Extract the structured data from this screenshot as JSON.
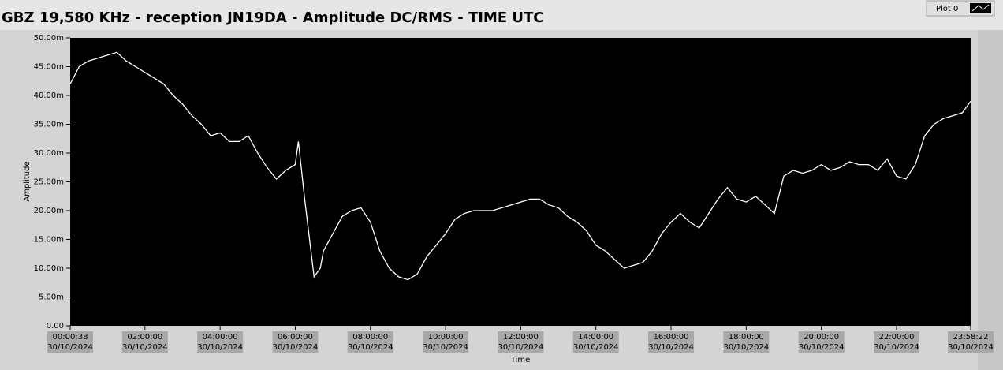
{
  "chart_data": {
    "type": "line",
    "title": "GBZ  19,580 KHz - reception JN19DA -  Amplitude DC/RMS   - TIME UTC",
    "legend": "Plot 0",
    "xlabel": "Time",
    "ylabel": "Amplitude",
    "x_date": "30/10/2024",
    "xlim": [
      "00:00:38",
      "23:58:22"
    ],
    "xticks": [
      "00:00:38",
      "02:00:00",
      "04:00:00",
      "06:00:00",
      "08:00:00",
      "10:00:00",
      "12:00:00",
      "14:00:00",
      "16:00:00",
      "18:00:00",
      "20:00:00",
      "22:00:00",
      "23:58:22"
    ],
    "ylim": [
      0,
      0.05
    ],
    "yticks": [
      {
        "value": 0,
        "label": "0.00"
      },
      {
        "value": 0.005,
        "label": "5.00m"
      },
      {
        "value": 0.01,
        "label": "10.00m"
      },
      {
        "value": 0.015,
        "label": "15.00m"
      },
      {
        "value": 0.02,
        "label": "20.00m"
      },
      {
        "value": 0.025,
        "label": "25.00m"
      },
      {
        "value": 0.03,
        "label": "30.00m"
      },
      {
        "value": 0.035,
        "label": "35.00m"
      },
      {
        "value": 0.04,
        "label": "40.00m"
      },
      {
        "value": 0.045,
        "label": "45.00m"
      },
      {
        "value": 0.05,
        "label": "50.00m"
      }
    ],
    "series": [
      {
        "name": "Plot 0",
        "color": "#ffffff",
        "x": [
          "00:00:38",
          "00:15:00",
          "00:30:00",
          "00:45:00",
          "01:00:00",
          "01:15:00",
          "01:30:00",
          "01:45:00",
          "02:00:00",
          "02:15:00",
          "02:30:00",
          "02:45:00",
          "03:00:00",
          "03:15:00",
          "03:30:00",
          "03:45:00",
          "04:00:00",
          "04:15:00",
          "04:30:00",
          "04:45:00",
          "05:00:00",
          "05:15:00",
          "05:30:00",
          "05:45:00",
          "06:00:00",
          "06:05:00",
          "06:15:00",
          "06:30:00",
          "06:40:00",
          "06:45:00",
          "07:00:00",
          "07:15:00",
          "07:30:00",
          "07:45:00",
          "08:00:00",
          "08:15:00",
          "08:30:00",
          "08:45:00",
          "09:00:00",
          "09:15:00",
          "09:30:00",
          "09:45:00",
          "10:00:00",
          "10:15:00",
          "10:30:00",
          "10:45:00",
          "11:00:00",
          "11:15:00",
          "11:30:00",
          "11:45:00",
          "12:00:00",
          "12:15:00",
          "12:30:00",
          "12:45:00",
          "13:00:00",
          "13:15:00",
          "13:30:00",
          "13:45:00",
          "14:00:00",
          "14:15:00",
          "14:30:00",
          "14:45:00",
          "15:00:00",
          "15:15:00",
          "15:30:00",
          "15:45:00",
          "16:00:00",
          "16:15:00",
          "16:30:00",
          "16:45:00",
          "17:00:00",
          "17:15:00",
          "17:30:00",
          "17:45:00",
          "18:00:00",
          "18:15:00",
          "18:30:00",
          "18:45:00",
          "19:00:00",
          "19:15:00",
          "19:30:00",
          "19:45:00",
          "20:00:00",
          "20:15:00",
          "20:30:00",
          "20:45:00",
          "21:00:00",
          "21:15:00",
          "21:30:00",
          "21:45:00",
          "22:00:00",
          "22:15:00",
          "22:30:00",
          "22:45:00",
          "23:00:00",
          "23:15:00",
          "23:30:00",
          "23:45:00",
          "23:58:22"
        ],
        "values": [
          0.042,
          0.045,
          0.046,
          0.0465,
          0.047,
          0.0475,
          0.046,
          0.045,
          0.044,
          0.043,
          0.042,
          0.04,
          0.0385,
          0.0365,
          0.035,
          0.033,
          0.0335,
          0.032,
          0.032,
          0.033,
          0.03,
          0.0275,
          0.0255,
          0.027,
          0.028,
          0.032,
          0.022,
          0.0085,
          0.01,
          0.013,
          0.016,
          0.019,
          0.02,
          0.0205,
          0.018,
          0.013,
          0.01,
          0.0085,
          0.008,
          0.009,
          0.012,
          0.014,
          0.016,
          0.0185,
          0.0195,
          0.02,
          0.02,
          0.02,
          0.0205,
          0.021,
          0.0215,
          0.022,
          0.022,
          0.021,
          0.0205,
          0.019,
          0.018,
          0.0165,
          0.014,
          0.013,
          0.0115,
          0.01,
          0.0105,
          0.011,
          0.013,
          0.016,
          0.018,
          0.0195,
          0.018,
          0.017,
          0.0195,
          0.022,
          0.024,
          0.022,
          0.0215,
          0.0225,
          0.021,
          0.0195,
          0.026,
          0.027,
          0.0265,
          0.027,
          0.028,
          0.027,
          0.0275,
          0.0285,
          0.028,
          0.028,
          0.027,
          0.029,
          0.026,
          0.0255,
          0.028,
          0.033,
          0.035,
          0.036,
          0.0365,
          0.037,
          0.039
        ]
      }
    ]
  }
}
